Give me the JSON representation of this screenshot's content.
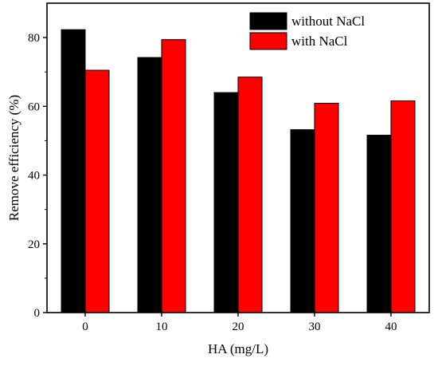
{
  "chart_data": {
    "type": "bar",
    "xlabel": "HA (mg/L)",
    "ylabel": "Remove efficiency (%)",
    "categories": [
      "0",
      "10",
      "20",
      "30",
      "40"
    ],
    "series": [
      {
        "name": "without NaCl",
        "color": "#000000",
        "values": [
          82.3,
          74.2,
          64.0,
          53.2,
          51.6
        ]
      },
      {
        "name": "with NaCl",
        "color": "#ff0000",
        "values": [
          70.5,
          79.4,
          68.5,
          60.9,
          61.6
        ]
      }
    ],
    "ylim": [
      0,
      90
    ],
    "yticks": [
      0,
      20,
      40,
      60,
      80
    ],
    "grid": false,
    "legend_position": "top-right"
  }
}
